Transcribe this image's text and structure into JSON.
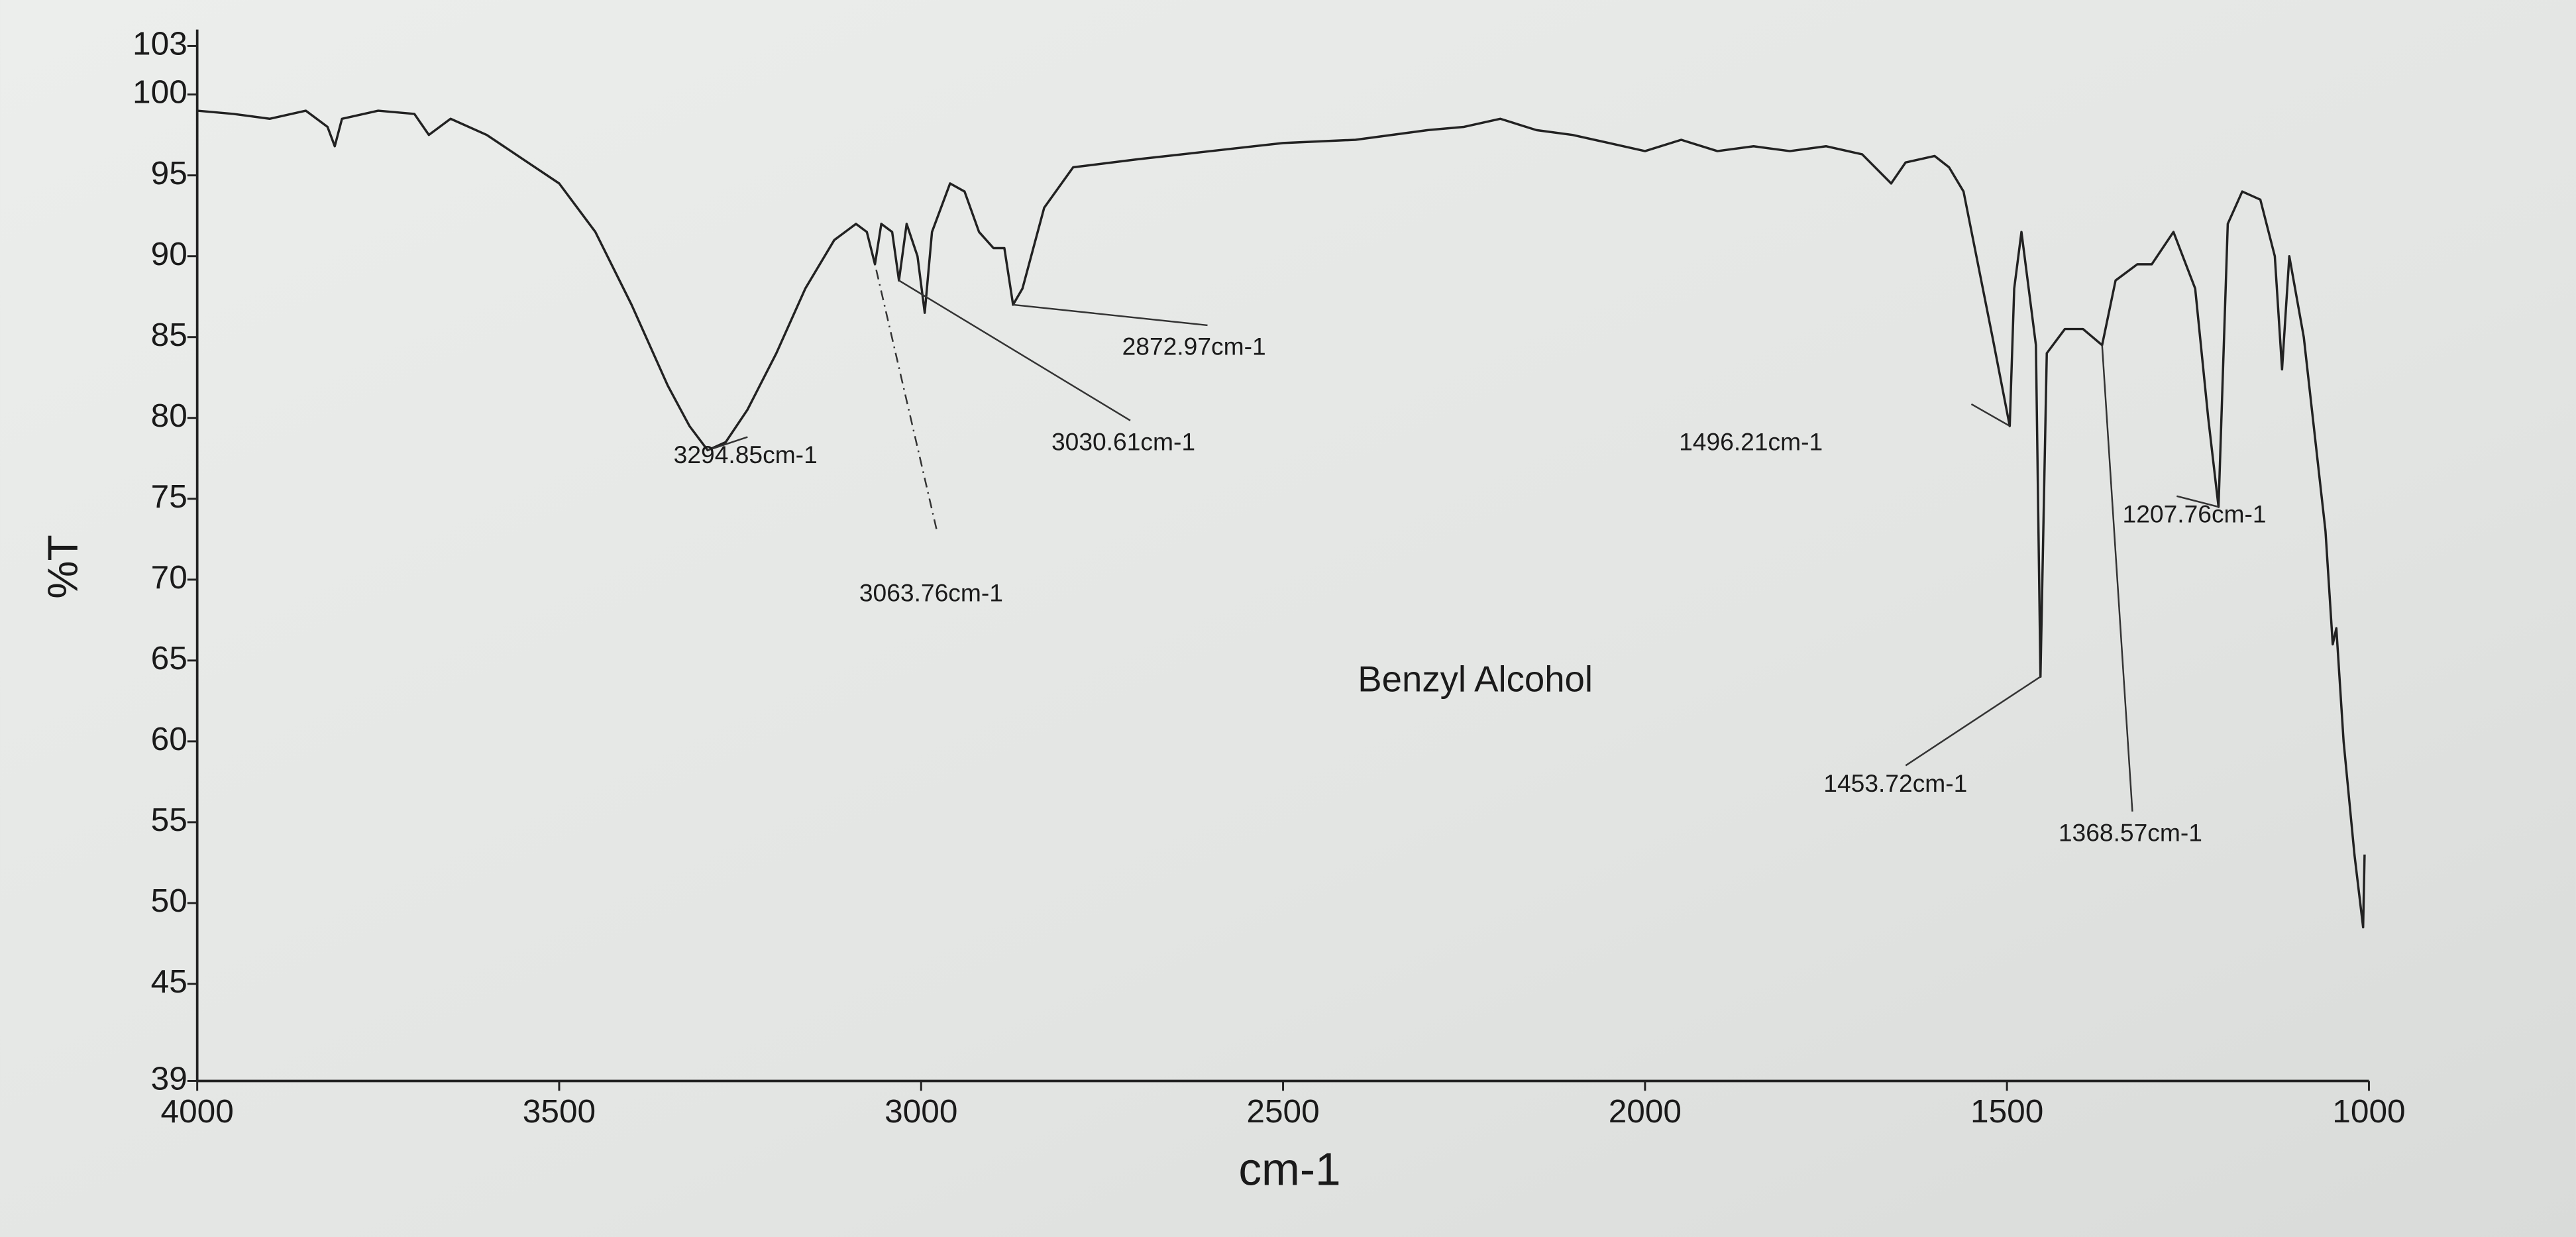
{
  "chart_data": {
    "type": "line",
    "title": "Benzyl Alcohol",
    "xlabel": "cm-1",
    "ylabel": "%T",
    "xlim": [
      4000,
      1000
    ],
    "ylim": [
      39,
      103
    ],
    "xticks": [
      4000,
      3500,
      3000,
      2500,
      2000,
      1500,
      1000
    ],
    "yticks": [
      39,
      45,
      50,
      55,
      60,
      65,
      70,
      75,
      80,
      85,
      90,
      95,
      100,
      103
    ],
    "color": "#222222",
    "x": [
      4000,
      3950,
      3900,
      3850,
      3820,
      3810,
      3800,
      3750,
      3700,
      3680,
      3650,
      3600,
      3550,
      3500,
      3450,
      3400,
      3350,
      3320,
      3294.85,
      3270,
      3240,
      3200,
      3160,
      3120,
      3090,
      3075,
      3063.76,
      3055,
      3040,
      3030.61,
      3020,
      3005,
      2995,
      2985,
      2960,
      2940,
      2920,
      2900,
      2885,
      2872.97,
      2860,
      2830,
      2790,
      2700,
      2600,
      2500,
      2400,
      2300,
      2250,
      2200,
      2150,
      2100,
      2050,
      2000,
      1950,
      1900,
      1850,
      1800,
      1750,
      1700,
      1660,
      1640,
      1600,
      1580,
      1560,
      1520,
      1496.21,
      1490,
      1480,
      1470,
      1460,
      1453.72,
      1445,
      1420,
      1395,
      1368.57,
      1350,
      1320,
      1300,
      1270,
      1240,
      1222,
      1207.76,
      1195,
      1175,
      1150,
      1130,
      1120,
      1110,
      1090,
      1060,
      1050,
      1045,
      1035,
      1020,
      1008,
      1006
    ],
    "values": [
      99,
      98.8,
      98.5,
      99,
      98,
      96.8,
      98.5,
      99,
      98.8,
      97.5,
      98.5,
      97.5,
      96,
      94.5,
      91.5,
      87,
      82,
      79.5,
      78,
      78.5,
      80.5,
      84,
      88,
      91,
      92,
      91.5,
      89.5,
      92,
      91.5,
      88.5,
      92,
      90,
      86.5,
      91.5,
      94.5,
      94,
      91.5,
      90.5,
      90.5,
      87,
      88,
      93,
      95.5,
      96,
      96.5,
      97,
      97.2,
      97.8,
      98,
      98.5,
      97.8,
      97.5,
      97,
      96.5,
      97.2,
      96.5,
      96.8,
      96.5,
      96.8,
      96.3,
      94.5,
      95.8,
      96.2,
      95.5,
      94,
      85,
      79.5,
      88,
      91.5,
      88,
      84.5,
      64,
      84,
      85.5,
      85.5,
      84.5,
      88.5,
      89.5,
      89.5,
      91.5,
      88,
      80,
      74.5,
      92,
      94,
      93.5,
      90,
      83,
      90,
      85,
      73,
      66,
      67,
      60,
      53,
      48.5,
      53
    ],
    "annotations": [
      {
        "text": "3294.85cm-1",
        "x": 3294.85,
        "y": 78
      },
      {
        "text": "3063.76cm-1",
        "x": 3063.76,
        "y": 89.5
      },
      {
        "text": "3030.61cm-1",
        "x": 3030.61,
        "y": 88.5
      },
      {
        "text": "2872.97cm-1",
        "x": 2872.97,
        "y": 87
      },
      {
        "text": "1496.21cm-1",
        "x": 1496.21,
        "y": 79.5
      },
      {
        "text": "1453.72cm-1",
        "x": 1453.72,
        "y": 64
      },
      {
        "text": "1368.57cm-1",
        "x": 1368.57,
        "y": 84.5
      },
      {
        "text": "1207.76cm-1",
        "x": 1207.76,
        "y": 74.5
      }
    ]
  }
}
